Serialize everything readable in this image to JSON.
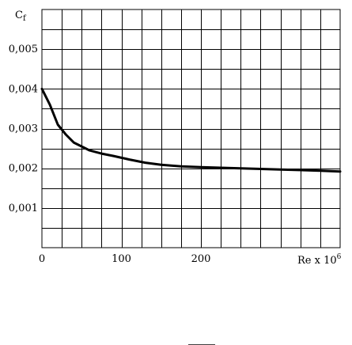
{
  "chart_data": {
    "type": "line",
    "ylabel": {
      "main": "C",
      "sub": "f"
    },
    "xlabel": {
      "main": "Re x 10",
      "sup": "6"
    },
    "xlim": [
      0,
      375
    ],
    "ylim": [
      0,
      0.006
    ],
    "x_ticks": [
      {
        "value": 0,
        "label": "0"
      },
      {
        "value": 100,
        "label": "100"
      },
      {
        "value": 200,
        "label": "200"
      }
    ],
    "y_ticks": [
      {
        "value": 0.001,
        "label": "0,001"
      },
      {
        "value": 0.002,
        "label": "0,002"
      },
      {
        "value": 0.003,
        "label": "0,003"
      },
      {
        "value": 0.004,
        "label": "0,004"
      },
      {
        "value": 0.005,
        "label": "0,005"
      }
    ],
    "grid": true,
    "grid_step_x": 25,
    "grid_step_y": 0.0005,
    "series": [
      {
        "values": [
          [
            0,
            0.004
          ],
          [
            10,
            0.0036
          ],
          [
            20,
            0.0031
          ],
          [
            30,
            0.00285
          ],
          [
            40,
            0.00265
          ],
          [
            50,
            0.00255
          ],
          [
            60,
            0.00245
          ],
          [
            75,
            0.00237
          ],
          [
            90,
            0.00231
          ],
          [
            110,
            0.00222
          ],
          [
            130,
            0.00214
          ],
          [
            150,
            0.00209
          ],
          [
            175,
            0.00205
          ],
          [
            200,
            0.00203
          ],
          [
            250,
            0.002
          ],
          [
            300,
            0.00197
          ],
          [
            350,
            0.00194
          ],
          [
            375,
            0.00192
          ]
        ]
      }
    ]
  }
}
